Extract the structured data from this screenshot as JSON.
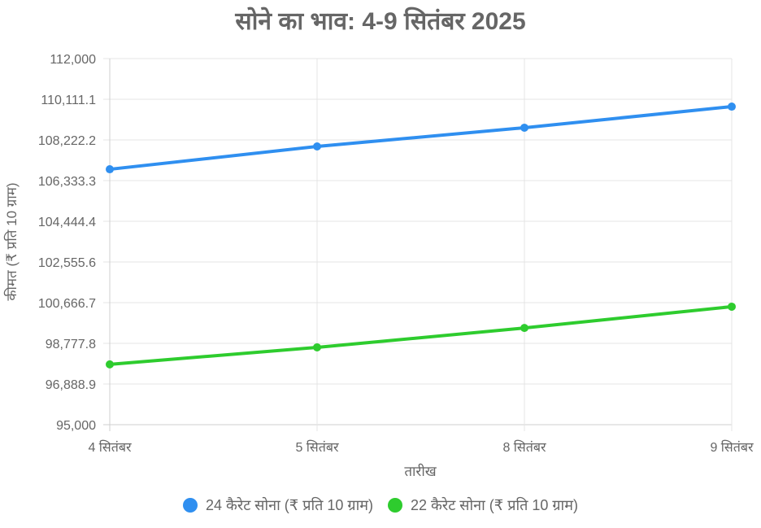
{
  "title": "सोने का भाव: 4-9 सितंबर 2025",
  "chart_data": {
    "type": "line",
    "title": "सोने का भाव: 4-9 सितंबर 2025",
    "xlabel": "तारीख",
    "ylabel": "कीमत (₹ प्रति 10 ग्राम)",
    "categories": [
      "4 सितंबर",
      "5 सितंबर",
      "8 सितंबर",
      "9 सितंबर"
    ],
    "ylim": [
      95000,
      112000
    ],
    "yticks": [
      "112,000",
      "110,111.1",
      "108,222.2",
      "106,333.3",
      "104,444.4",
      "102,555.6",
      "100,666.7",
      "98,777.8",
      "96,888.9",
      "95,000"
    ],
    "grid": true,
    "legend_position": "bottom",
    "series": [
      {
        "name": "24 कैरेट सोना (₹ प्रति 10 ग्राम)",
        "color": "#2f8ff0",
        "values": [
          106860,
          107920,
          108790,
          109770
        ]
      },
      {
        "name": "22 कैरेट सोना (₹ प्रति 10 ग्राम)",
        "color": "#2ecc2e",
        "values": [
          97800,
          98590,
          99490,
          100480
        ]
      }
    ]
  },
  "legend": {
    "items": [
      {
        "label": "24 कैरेट सोना (₹ प्रति 10 ग्राम)",
        "color": "#2f8ff0"
      },
      {
        "label": "22 कैरेट सोना (₹ प्रति 10 ग्राम)",
        "color": "#2ecc2e"
      }
    ]
  }
}
